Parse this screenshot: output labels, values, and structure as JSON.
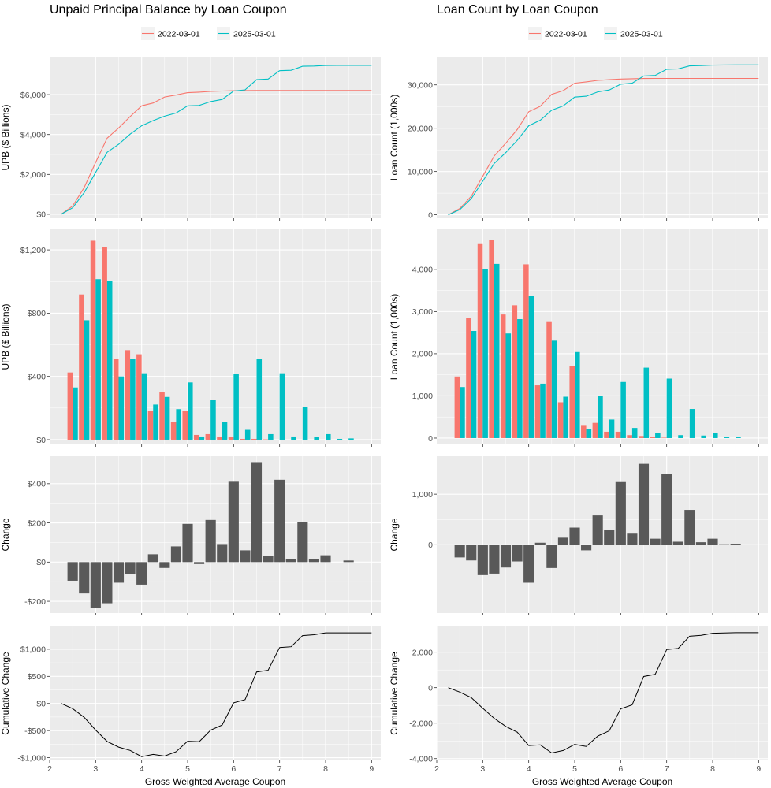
{
  "colors": {
    "series_2022": "#F8766D",
    "series_2025": "#00BFC4",
    "change_bar": "#595959",
    "panel_bg": "#EBEBEB",
    "grid": "#FFFFFF"
  },
  "x_axis_label": "Gross Weighted Average Coupon",
  "chart_data": [
    {
      "id": "upb_cum",
      "type": "line",
      "title": "Unpaid Principal Balance by Loan Coupon",
      "legend": [
        "2022-03-01",
        "2025-03-01"
      ],
      "legend_position": "top",
      "ylabel": "UPB ($ Billions)",
      "xlim": [
        2,
        9.2
      ],
      "ylim": [
        -200,
        7900
      ],
      "yticks": [
        0,
        2000,
        4000,
        6000
      ],
      "ytick_labels": [
        "$0",
        "$2,000",
        "$4,000",
        "$6,000"
      ],
      "xticks": [
        3,
        4,
        5,
        6,
        7,
        8,
        9
      ],
      "grid": true,
      "x": [
        2.25,
        2.5,
        2.75,
        3,
        3.25,
        3.5,
        3.75,
        4,
        4.25,
        4.5,
        4.75,
        5,
        5.25,
        5.5,
        5.75,
        6,
        6.25,
        6.5,
        6.75,
        7,
        7.25,
        7.5,
        7.75,
        8,
        8.25,
        8.5,
        8.75,
        9
      ],
      "series": [
        {
          "name": "2022-03-01",
          "values": [
            0,
            420,
            1340,
            2600,
            3820,
            4330,
            4900,
            5440,
            5580,
            5880,
            5980,
            6100,
            6125,
            6160,
            6180,
            6200,
            6205,
            6210,
            6210,
            6210,
            6210,
            6210,
            6210,
            6210,
            6210,
            6210,
            6210,
            6210
          ]
        },
        {
          "name": "2025-03-01",
          "values": [
            0,
            330,
            1090,
            2100,
            3110,
            3510,
            4020,
            4440,
            4700,
            4920,
            5080,
            5440,
            5460,
            5650,
            5760,
            6180,
            6240,
            6750,
            6780,
            7200,
            7220,
            7420,
            7435,
            7460,
            7465,
            7470,
            7470,
            7470
          ]
        }
      ]
    },
    {
      "id": "cnt_cum",
      "type": "line",
      "title": "Loan Count by Loan Coupon",
      "legend": [
        "2022-03-01",
        "2025-03-01"
      ],
      "legend_position": "top",
      "ylabel": "Loan Count (1,000s)",
      "xlim": [
        2,
        9.2
      ],
      "ylim": [
        -800,
        36500
      ],
      "yticks": [
        0,
        10000,
        20000,
        30000
      ],
      "ytick_labels": [
        "0",
        "10,000",
        "20,000",
        "30,000"
      ],
      "xticks": [
        3,
        4,
        5,
        6,
        7,
        8,
        9
      ],
      "grid": true,
      "x": [
        2.25,
        2.5,
        2.75,
        3,
        3.25,
        3.5,
        3.75,
        4,
        4.25,
        4.5,
        4.75,
        5,
        5.25,
        5.5,
        5.75,
        6,
        6.25,
        6.5,
        6.75,
        7,
        7.25,
        7.5,
        7.75,
        8,
        8.25,
        8.5,
        8.75,
        9
      ],
      "series": [
        {
          "name": "2022-03-01",
          "values": [
            0,
            1460,
            4300,
            8900,
            13600,
            16530,
            19680,
            23800,
            25050,
            27820,
            28670,
            30380,
            30690,
            31050,
            31200,
            31350,
            31420,
            31470,
            31490,
            31500,
            31500,
            31500,
            31500,
            31500,
            31500,
            31500,
            31500,
            31500
          ]
        },
        {
          "name": "2025-03-01",
          "values": [
            0,
            1210,
            3750,
            7750,
            11880,
            14360,
            17180,
            20560,
            21850,
            24160,
            25140,
            27180,
            27390,
            28380,
            28820,
            30150,
            30390,
            32060,
            32190,
            33600,
            33700,
            34390,
            34460,
            34580,
            34600,
            34620,
            34620,
            34620
          ]
        }
      ]
    },
    {
      "id": "upb_dist",
      "type": "bar",
      "ylabel": "UPB ($ Billions)",
      "xlim": [
        2,
        9.2
      ],
      "ylim": [
        -30,
        1330
      ],
      "yticks": [
        0,
        400,
        800,
        1200
      ],
      "ytick_labels": [
        "$0",
        "$400",
        "$800",
        "$1,200"
      ],
      "xticks": [
        3,
        4,
        5,
        6,
        7,
        8,
        9
      ],
      "grid": true,
      "x": [
        2.5,
        2.75,
        3,
        3.25,
        3.5,
        3.75,
        4,
        4.25,
        4.5,
        4.75,
        5,
        5.25,
        5.5,
        5.75,
        6,
        6.25,
        6.5,
        6.75,
        7,
        7.25,
        7.5,
        7.75,
        8,
        8.25,
        8.5
      ],
      "series": [
        {
          "name": "2022-03-01",
          "values": [
            425,
            918,
            1258,
            1218,
            508,
            566,
            540,
            183,
            303,
            113,
            180,
            30,
            35,
            18,
            18,
            5,
            5,
            2,
            0,
            0,
            0,
            0,
            0,
            0,
            0
          ]
        },
        {
          "name": "2025-03-01",
          "values": [
            330,
            755,
            1015,
            1005,
            400,
            508,
            420,
            222,
            270,
            193,
            362,
            20,
            250,
            110,
            415,
            62,
            510,
            35,
            420,
            20,
            205,
            18,
            35,
            5,
            8
          ]
        }
      ]
    },
    {
      "id": "cnt_dist",
      "type": "bar",
      "ylabel": "Loan Count (1,000s)",
      "xlim": [
        2,
        9.2
      ],
      "ylim": [
        -150,
        4950
      ],
      "yticks": [
        0,
        1000,
        2000,
        3000,
        4000
      ],
      "ytick_labels": [
        "0",
        "1,000",
        "2,000",
        "3,000",
        "4,000"
      ],
      "xticks": [
        3,
        4,
        5,
        6,
        7,
        8,
        9
      ],
      "grid": true,
      "x": [
        2.5,
        2.75,
        3,
        3.25,
        3.5,
        3.75,
        4,
        4.25,
        4.5,
        4.75,
        5,
        5.25,
        5.5,
        5.75,
        6,
        6.25,
        6.5,
        6.75,
        7,
        7.25,
        7.5,
        7.75,
        8,
        8.25,
        8.5
      ],
      "series": [
        {
          "name": "2022-03-01",
          "values": [
            1460,
            2840,
            4600,
            4700,
            2930,
            3150,
            4120,
            1250,
            2770,
            850,
            1710,
            310,
            360,
            150,
            150,
            70,
            50,
            20,
            10,
            0,
            0,
            0,
            0,
            0,
            0
          ]
        },
        {
          "name": "2025-03-01",
          "values": [
            1210,
            2540,
            4000,
            4130,
            2480,
            2820,
            3380,
            1290,
            2310,
            980,
            2040,
            210,
            990,
            440,
            1330,
            240,
            1670,
            130,
            1410,
            70,
            690,
            60,
            120,
            20,
            30
          ]
        }
      ]
    },
    {
      "id": "upb_change",
      "type": "bar",
      "ylabel": "Change",
      "xlim": [
        2,
        9.2
      ],
      "ylim": [
        -260,
        540
      ],
      "yticks": [
        -200,
        0,
        200,
        400
      ],
      "ytick_labels": [
        "-$200",
        "$0",
        "$200",
        "$400"
      ],
      "xticks": [
        3,
        4,
        5,
        6,
        7,
        8,
        9
      ],
      "grid": true,
      "x": [
        2.5,
        2.75,
        3,
        3.25,
        3.5,
        3.75,
        4,
        4.25,
        4.5,
        4.75,
        5,
        5.25,
        5.5,
        5.75,
        6,
        6.25,
        6.5,
        6.75,
        7,
        7.25,
        7.5,
        7.75,
        8,
        8.25,
        8.5
      ],
      "values": [
        -95,
        -160,
        -235,
        -210,
        -105,
        -60,
        -115,
        40,
        -30,
        80,
        195,
        -10,
        215,
        92,
        410,
        60,
        510,
        30,
        420,
        15,
        205,
        15,
        35,
        0,
        8
      ]
    },
    {
      "id": "cnt_change",
      "type": "bar",
      "ylabel": "Change",
      "xlim": [
        2,
        9.2
      ],
      "ylim": [
        -1350,
        1750
      ],
      "yticks": [
        0,
        1000
      ],
      "ytick_labels": [
        "0",
        "1,000"
      ],
      "xticks": [
        3,
        4,
        5,
        6,
        7,
        8,
        9
      ],
      "grid": true,
      "x": [
        2.5,
        2.75,
        3,
        3.25,
        3.5,
        3.75,
        4,
        4.25,
        4.5,
        4.75,
        5,
        5.25,
        5.5,
        5.75,
        6,
        6.25,
        6.5,
        6.75,
        7,
        7.25,
        7.5,
        7.75,
        8,
        8.25,
        8.5
      ],
      "values": [
        -250,
        -310,
        -600,
        -570,
        -450,
        -330,
        -750,
        40,
        -460,
        140,
        340,
        -110,
        580,
        300,
        1240,
        220,
        1600,
        120,
        1400,
        60,
        690,
        50,
        120,
        10,
        20
      ]
    },
    {
      "id": "upb_cumchange",
      "type": "line",
      "ylabel": "Cumulative Change",
      "xlabel": "Gross Weighted Average Coupon",
      "xlim": [
        2,
        9.2
      ],
      "ylim": [
        -1050,
        1420
      ],
      "yticks": [
        -1000,
        -500,
        0,
        500,
        1000
      ],
      "ytick_labels": [
        "-$1,000",
        "-$500",
        "$0",
        "$500",
        "$1,000"
      ],
      "xticks": [
        2,
        3,
        4,
        5,
        6,
        7,
        8,
        9
      ],
      "grid": true,
      "x": [
        2.25,
        2.5,
        2.75,
        3,
        3.25,
        3.5,
        3.75,
        4,
        4.25,
        4.5,
        4.75,
        5,
        5.25,
        5.5,
        5.75,
        6,
        6.25,
        6.5,
        6.75,
        7,
        7.25,
        7.5,
        7.75,
        8,
        8.25,
        8.5,
        8.75,
        9
      ],
      "values": [
        0,
        -95,
        -255,
        -490,
        -700,
        -805,
        -865,
        -980,
        -940,
        -970,
        -890,
        -695,
        -705,
        -490,
        -398,
        12,
        72,
        582,
        612,
        1032,
        1047,
        1252,
        1267,
        1302,
        1302,
        1302,
        1302,
        1302
      ]
    },
    {
      "id": "cnt_cumchange",
      "type": "line",
      "ylabel": "Cumulative Change",
      "xlabel": "Gross Weighted Average Coupon",
      "xlim": [
        2,
        9.2
      ],
      "ylim": [
        -4100,
        3450
      ],
      "yticks": [
        -4000,
        -2000,
        0,
        2000
      ],
      "ytick_labels": [
        "-4,000",
        "-2,000",
        "0",
        "2,000"
      ],
      "xticks": [
        2,
        3,
        4,
        5,
        6,
        7,
        8,
        9
      ],
      "grid": true,
      "x": [
        2.25,
        2.5,
        2.75,
        3,
        3.25,
        3.5,
        3.75,
        4,
        4.25,
        4.5,
        4.75,
        5,
        5.25,
        5.5,
        5.75,
        6,
        6.25,
        6.5,
        6.75,
        7,
        7.25,
        7.5,
        7.75,
        8,
        8.25,
        8.5,
        8.75,
        9
      ],
      "values": [
        0,
        -250,
        -560,
        -1160,
        -1730,
        -2180,
        -2510,
        -3260,
        -3220,
        -3680,
        -3540,
        -3200,
        -3310,
        -2730,
        -2430,
        -1190,
        -970,
        630,
        750,
        2150,
        2210,
        2900,
        2950,
        3070,
        3080,
        3100,
        3100,
        3100
      ]
    }
  ]
}
